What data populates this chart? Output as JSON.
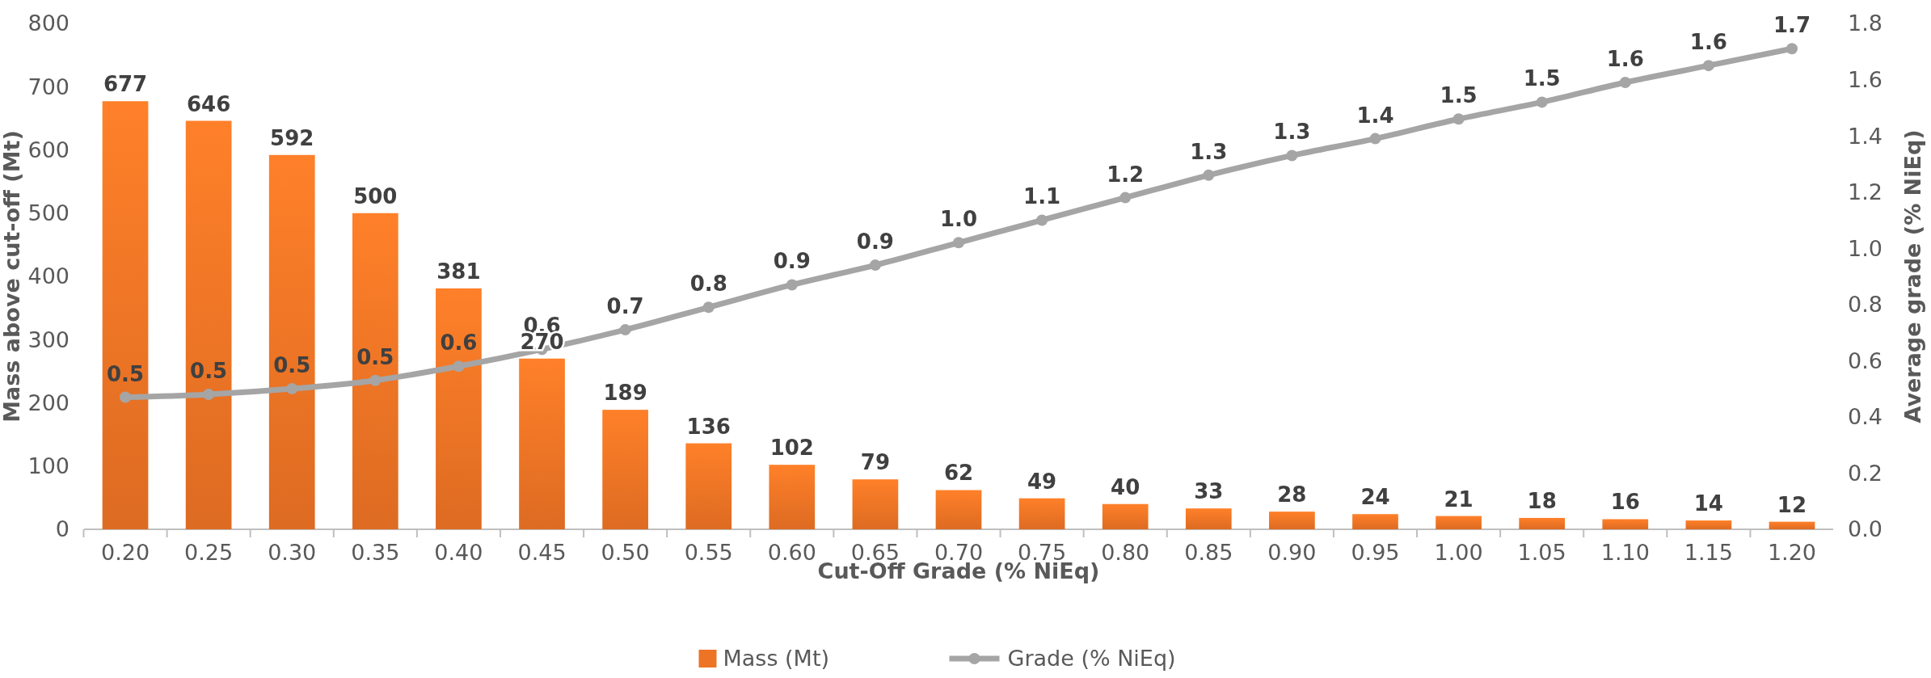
{
  "chart_data": {
    "type": "bar",
    "xlabel": "Cut-Off Grade (% NiEq)",
    "ylabel": "Mass above cut-off (Mt)",
    "y2label": "Average grade (% NiEq)",
    "categories": [
      "0.20",
      "0.25",
      "0.30",
      "0.35",
      "0.40",
      "0.45",
      "0.50",
      "0.55",
      "0.60",
      "0.65",
      "0.70",
      "0.75",
      "0.80",
      "0.85",
      "0.90",
      "0.95",
      "1.00",
      "1.05",
      "1.10",
      "1.15",
      "1.20"
    ],
    "series": [
      {
        "name": "Mass (Mt)",
        "color": "#ed7325",
        "values": [
          677,
          646,
          592,
          500,
          381,
          270,
          189,
          136,
          102,
          79,
          62,
          49,
          40,
          33,
          28,
          24,
          21,
          18,
          16,
          14,
          12
        ],
        "value_labels": [
          "677",
          "646",
          "592",
          "500",
          "381",
          "270",
          "189",
          "136",
          "102",
          "79",
          "62",
          "49",
          "40",
          "33",
          "28",
          "24",
          "21",
          "18",
          "16",
          "14",
          "12"
        ]
      },
      {
        "name": "Grade (% NiEq)",
        "type": "line",
        "axis": "y2",
        "color": "#a5a5a5",
        "values": [
          0.47,
          0.48,
          0.5,
          0.53,
          0.58,
          0.64,
          0.71,
          0.79,
          0.87,
          0.94,
          1.02,
          1.1,
          1.18,
          1.26,
          1.33,
          1.39,
          1.46,
          1.52,
          1.59,
          1.65,
          1.71
        ],
        "value_labels": [
          "0.5",
          "0.5",
          "0.5",
          "0.5",
          "0.6",
          "0.6",
          "0.7",
          "0.8",
          "0.9",
          "0.9",
          "1.0",
          "1.1",
          "1.2",
          "1.3",
          "1.3",
          "1.4",
          "1.5",
          "1.5",
          "1.6",
          "1.6",
          "1.7"
        ]
      }
    ],
    "marker": "circle",
    "ylim": [
      0,
      800
    ],
    "yticks": [
      0,
      100,
      200,
      300,
      400,
      500,
      600,
      700,
      800
    ],
    "y2lim": [
      0,
      1.8
    ],
    "y2ticks": [
      {
        "value": 0,
        "label": "0.0"
      },
      0.2,
      0.4,
      0.6,
      0.8,
      {
        "value": 1,
        "label": "1.0"
      },
      1.2,
      1.4,
      1.6,
      1.8
    ],
    "legend": "bottom"
  }
}
